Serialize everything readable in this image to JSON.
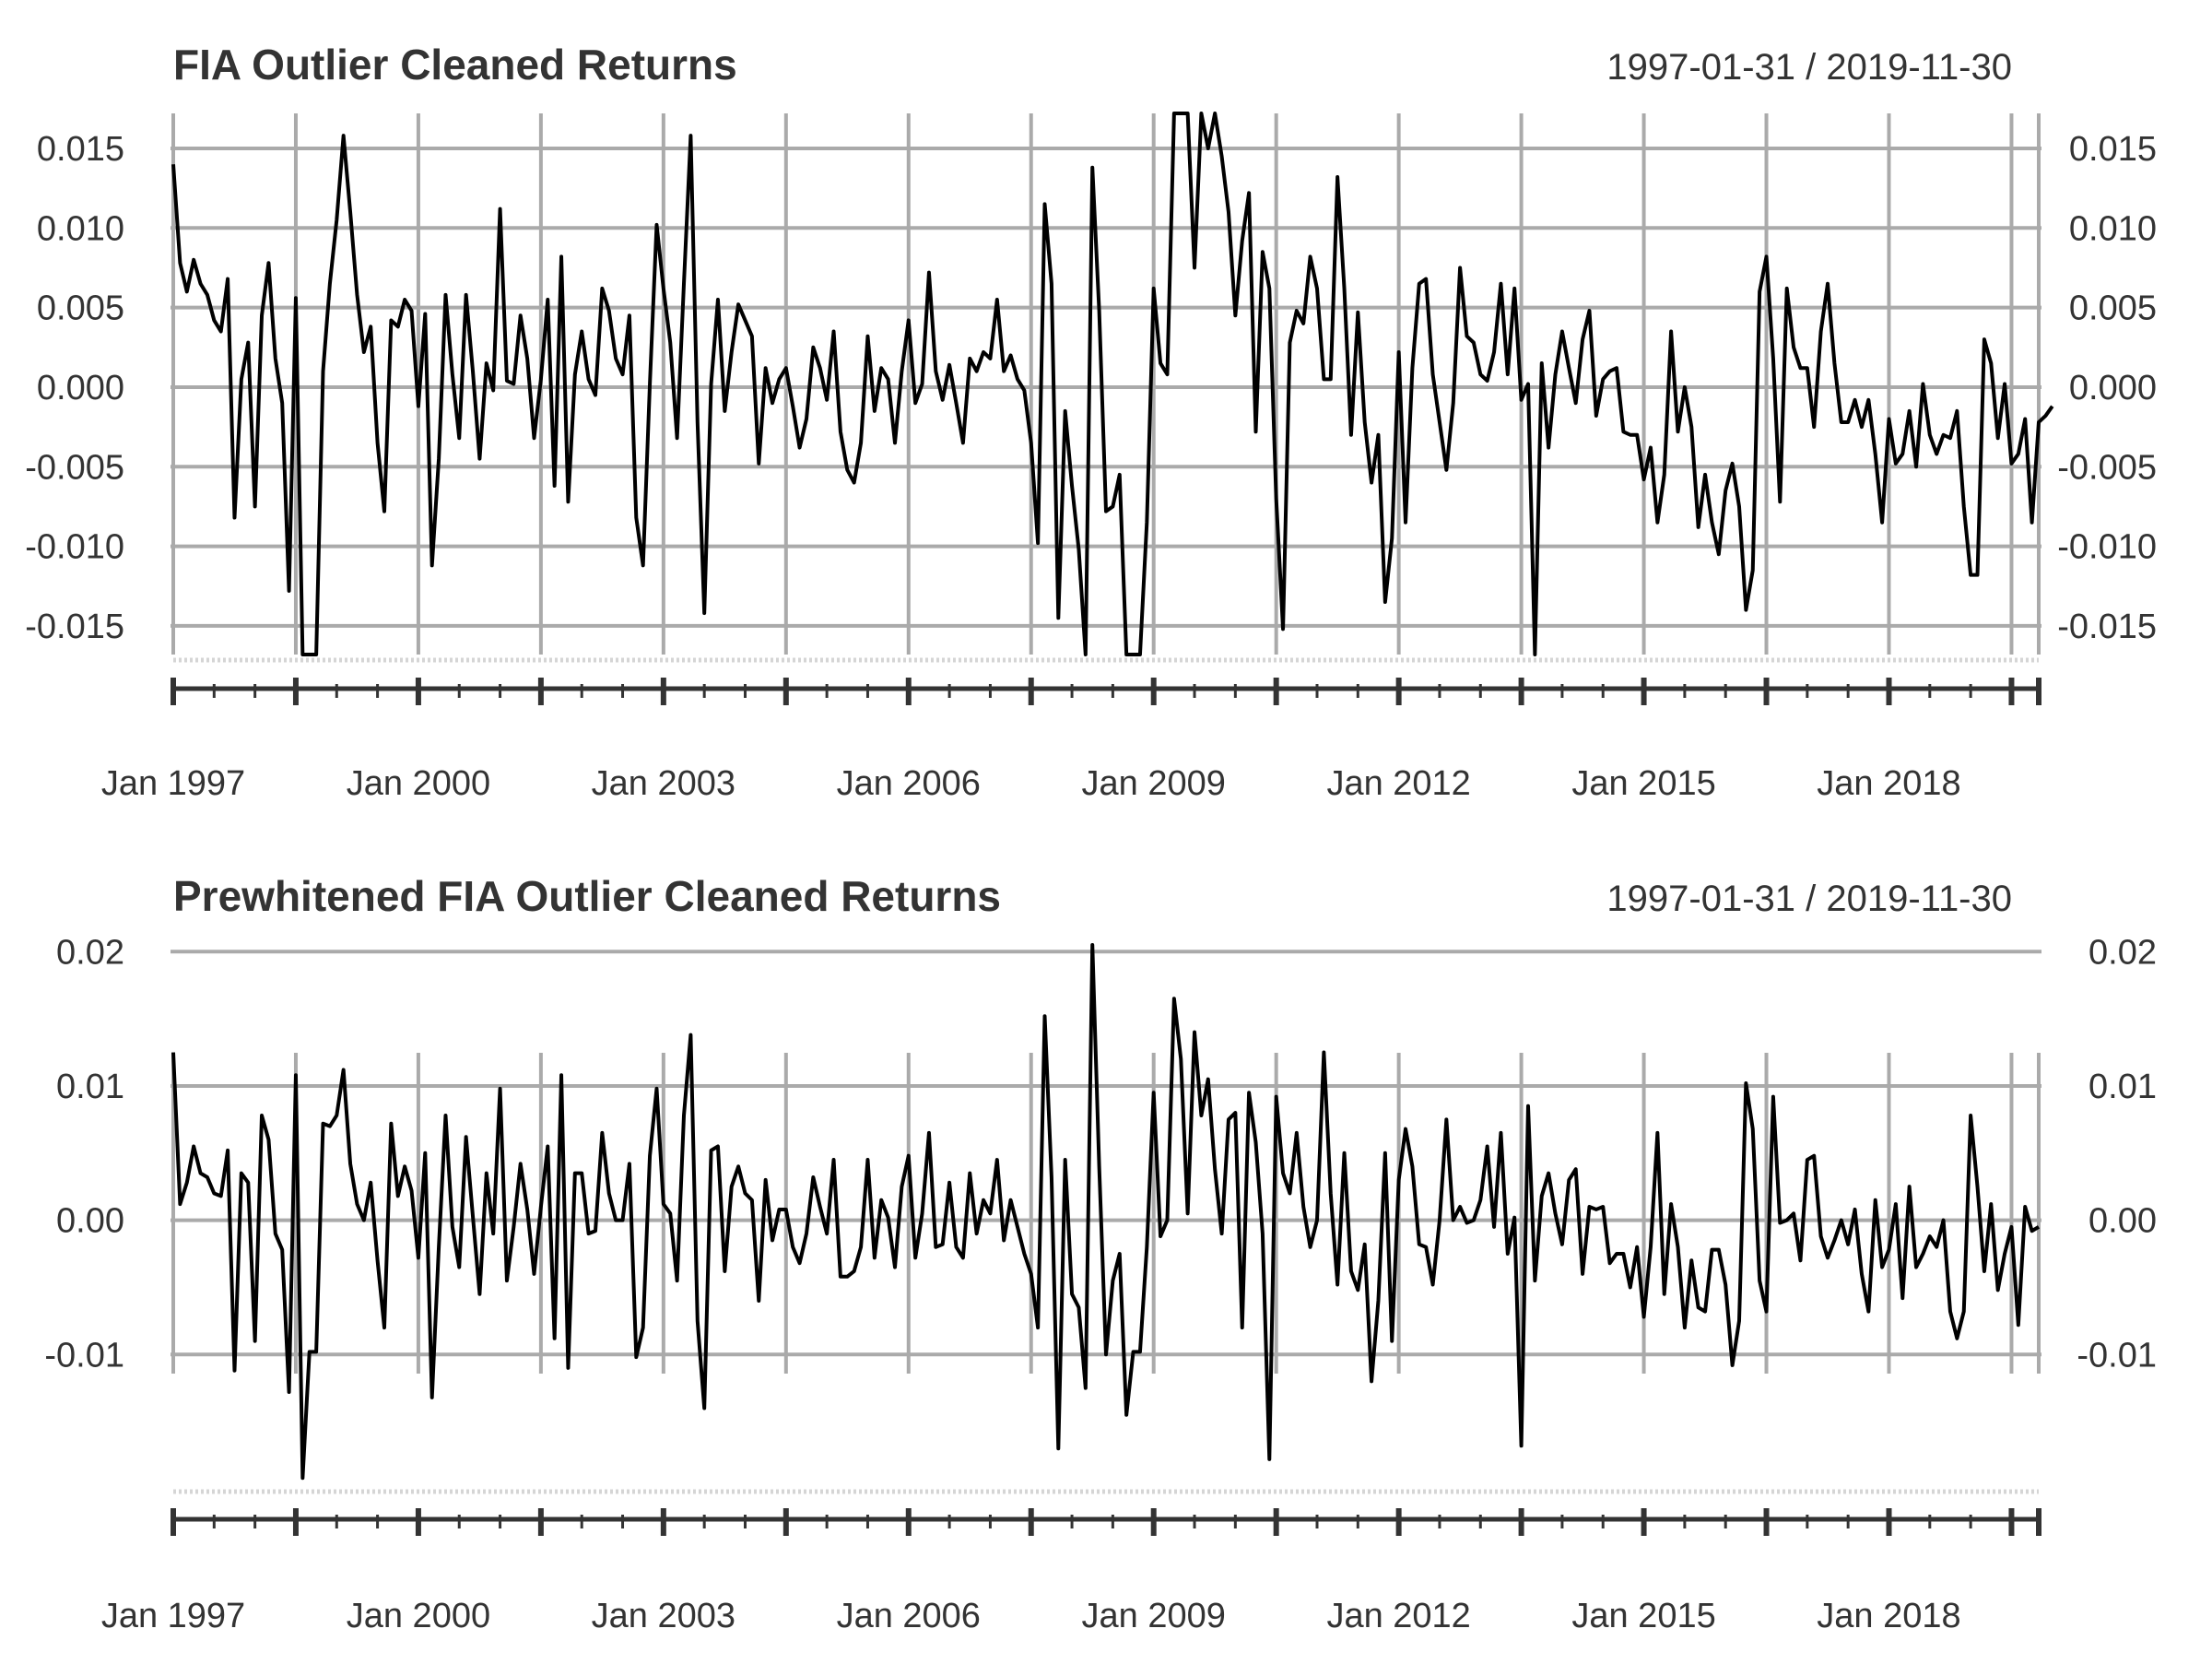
{
  "chart_data": [
    {
      "type": "line",
      "title": "FIA Outlier Cleaned Returns",
      "date_range": "1997-01-31 / 2019-11-30",
      "x_start": "1997-01",
      "x_end": "2019-11",
      "frequency": "monthly",
      "ylim": [
        -0.0168,
        0.0172
      ],
      "y_ticks": [
        0.015,
        0.01,
        0.005,
        0.0,
        -0.005,
        -0.01,
        -0.015
      ],
      "y_tick_labels": [
        "0.015",
        "0.010",
        "0.005",
        "0.000",
        "-0.005",
        "-0.010",
        "-0.015"
      ],
      "x_tick_labels": [
        "Jan 1997",
        "Jan 2000",
        "Jan 2003",
        "Jan 2006",
        "Jan 2009",
        "Jan 2012",
        "Jan 2015",
        "Jan 2018"
      ],
      "grid": true,
      "series": [
        {
          "values": [
            0.014,
            0.0078,
            0.006,
            0.008,
            0.0065,
            0.0058,
            0.0042,
            0.0035,
            0.0068,
            -0.0082,
            0.0005,
            0.0028,
            -0.0075,
            0.0045,
            0.0078,
            0.0018,
            -0.001,
            -0.0128,
            0.0056,
            -0.0168,
            -0.0168,
            -0.0168,
            0.001,
            0.0065,
            0.0105,
            0.0158,
            0.011,
            0.0058,
            0.0022,
            0.0038,
            -0.0035,
            -0.0078,
            0.0042,
            0.0038,
            0.0055,
            0.0048,
            -0.0012,
            0.0046,
            -0.0112,
            -0.0045,
            0.0058,
            0.0008,
            -0.0032,
            0.0058,
            0.001,
            -0.0045,
            0.0015,
            -0.0002,
            0.0112,
            0.0004,
            0.0002,
            0.0045,
            0.0018,
            -0.0032,
            0.0005,
            0.0055,
            -0.0062,
            0.0082,
            -0.0072,
            0.0008,
            0.0035,
            0.0005,
            -0.0005,
            0.0062,
            0.0048,
            0.0018,
            0.0008,
            0.0045,
            -0.0082,
            -0.0112,
            0.0002,
            0.0102,
            0.0062,
            0.0028,
            -0.0032,
            0.0065,
            0.0158,
            -0.0022,
            -0.0142,
            0.0002,
            0.0055,
            -0.0015,
            0.0022,
            0.0052,
            0.0042,
            0.0032,
            -0.0048,
            0.0012,
            -0.001,
            0.0005,
            0.0012,
            -0.0012,
            -0.0038,
            -0.002,
            0.0025,
            0.0012,
            -0.0008,
            0.0035,
            -0.0028,
            -0.0052,
            -0.006,
            -0.0035,
            0.0032,
            -0.0015,
            0.0012,
            0.0005,
            -0.0035,
            0.001,
            0.0042,
            -0.001,
            0.0002,
            0.0072,
            0.001,
            -0.0008,
            0.0014,
            -0.001,
            -0.0035,
            0.0018,
            0.001,
            0.0022,
            0.0018,
            0.0055,
            0.001,
            0.002,
            0.0005,
            -0.0002,
            -0.0035,
            -0.0098,
            0.0115,
            0.0065,
            -0.0145,
            -0.0015,
            -0.0062,
            -0.0102,
            -0.0168,
            0.0138,
            0.0048,
            -0.0078,
            -0.0075,
            -0.0055,
            -0.0168,
            -0.0168,
            -0.0168,
            -0.0085,
            0.0062,
            0.0015,
            0.0008,
            0.0172,
            0.0172,
            0.0172,
            0.0075,
            0.0172,
            0.015,
            0.0172,
            0.0145,
            0.011,
            0.0045,
            0.0092,
            0.0122,
            -0.0028,
            0.0085,
            0.0062,
            -0.007,
            -0.0152,
            0.0028,
            0.0048,
            0.004,
            0.0082,
            0.0062,
            0.0005,
            0.0005,
            0.0132,
            0.0062,
            -0.003,
            0.0047,
            -0.0022,
            -0.006,
            -0.003,
            -0.0135,
            -0.0095,
            0.0022,
            -0.0085,
            0.0012,
            0.0065,
            0.0068,
            0.0008,
            -0.0022,
            -0.0052,
            -0.001,
            0.0075,
            0.0032,
            0.0028,
            0.0008,
            0.0004,
            0.0022,
            0.0065,
            0.0008,
            0.0062,
            -0.0008,
            0.0002,
            -0.0168,
            0.0015,
            -0.0038,
            0.0008,
            0.0035,
            0.0012,
            -0.001,
            0.003,
            0.0048,
            -0.0018,
            0.0005,
            0.001,
            0.0012,
            -0.0028,
            -0.003,
            -0.003,
            -0.0058,
            -0.0038,
            -0.0085,
            -0.0055,
            0.0035,
            -0.0028,
            0.0,
            -0.0025,
            -0.0088,
            -0.0055,
            -0.0085,
            -0.0105,
            -0.0065,
            -0.0048,
            -0.0075,
            -0.014,
            -0.0115,
            0.006,
            0.0082,
            0.0018,
            -0.0072,
            0.0062,
            0.0025,
            0.0012,
            0.0012,
            -0.0025,
            0.0035,
            0.0065,
            0.0015,
            -0.0022,
            -0.0022,
            -0.0008,
            -0.0025,
            -0.0008,
            -0.0042,
            -0.0085,
            -0.002,
            -0.0048,
            -0.0042,
            -0.0015,
            -0.005,
            0.0002,
            -0.003,
            -0.0042,
            -0.003,
            -0.0032,
            -0.0015,
            -0.0075,
            -0.0118,
            -0.0118,
            0.003,
            0.0015,
            -0.0032,
            0.0002,
            -0.0048,
            -0.0042,
            -0.002,
            -0.0085,
            -0.0022,
            -0.0018,
            -0.0012
          ]
        }
      ]
    },
    {
      "type": "line",
      "title": "Prewhitened FIA Outlier Cleaned Returns",
      "date_range": "1997-01-31 / 2019-11-30",
      "x_start": "1997-01",
      "x_end": "2019-11",
      "frequency": "monthly",
      "ylim": [
        -0.0198,
        0.0205
      ],
      "y_ticks": [
        0.02,
        0.01,
        0.0,
        -0.01
      ],
      "y_tick_labels": [
        "0.02",
        "0.01",
        "0.00",
        "-0.01"
      ],
      "x_tick_labels": [
        "Jan 1997",
        "Jan 2000",
        "Jan 2003",
        "Jan 2006",
        "Jan 2009",
        "Jan 2012",
        "Jan 2015",
        "Jan 2018"
      ],
      "grid": true,
      "series": [
        {
          "values": [
            0.0125,
            0.0012,
            0.0028,
            0.0055,
            0.0035,
            0.0032,
            0.002,
            0.0018,
            0.0052,
            -0.0112,
            0.0035,
            0.0028,
            -0.009,
            0.0078,
            0.006,
            -0.001,
            -0.0022,
            -0.0128,
            0.0108,
            -0.0192,
            -0.0098,
            -0.0098,
            0.0072,
            0.007,
            0.0078,
            0.0112,
            0.0042,
            0.0012,
            0.0,
            0.0028,
            -0.003,
            -0.008,
            0.0072,
            0.0018,
            0.004,
            0.0022,
            -0.0028,
            0.005,
            -0.0132,
            -0.002,
            0.0078,
            -0.0005,
            -0.0035,
            0.0062,
            0.0003,
            -0.0055,
            0.0035,
            -0.001,
            0.0098,
            -0.0045,
            -0.0005,
            0.0042,
            0.0008,
            -0.004,
            0.001,
            0.0055,
            -0.0088,
            0.0108,
            -0.011,
            0.0035,
            0.0035,
            -0.001,
            -0.0008,
            0.0065,
            0.002,
            0.0,
            0.0,
            0.0042,
            -0.0102,
            -0.008,
            0.0048,
            0.0098,
            0.0012,
            0.0005,
            -0.0045,
            0.0078,
            0.0138,
            -0.0075,
            -0.014,
            0.0052,
            0.0055,
            -0.0038,
            0.0025,
            0.004,
            0.002,
            0.0015,
            -0.006,
            0.003,
            -0.0015,
            0.0008,
            0.0008,
            -0.002,
            -0.0032,
            -0.001,
            0.0032,
            0.001,
            -0.001,
            0.0045,
            -0.0042,
            -0.0042,
            -0.0038,
            -0.002,
            0.0045,
            -0.0028,
            0.0015,
            0.0002,
            -0.0035,
            0.0025,
            0.0048,
            -0.0028,
            0.0005,
            0.0065,
            -0.002,
            -0.0018,
            0.0028,
            -0.002,
            -0.0028,
            0.0035,
            -0.001,
            0.0015,
            0.0005,
            0.0045,
            -0.0015,
            0.0015,
            -0.0005,
            -0.0025,
            -0.004,
            -0.008,
            0.0152,
            0.0032,
            -0.017,
            0.0045,
            -0.0055,
            -0.0065,
            -0.0125,
            0.0205,
            0.004,
            -0.01,
            -0.0045,
            -0.0025,
            -0.0145,
            -0.0098,
            -0.0098,
            -0.002,
            0.0095,
            -0.0012,
            0.0,
            0.0165,
            0.012,
            0.0005,
            0.014,
            0.0078,
            0.0105,
            0.0038,
            -0.001,
            0.0075,
            0.008,
            -0.008,
            0.0095,
            0.0058,
            -0.001,
            -0.0178,
            0.0092,
            0.0035,
            0.002,
            0.0065,
            0.001,
            -0.002,
            0.0,
            0.0125,
            0.002,
            -0.0048,
            0.005,
            -0.0038,
            -0.0052,
            -0.0018,
            -0.012,
            -0.006,
            0.005,
            -0.009,
            0.003,
            0.0068,
            0.004,
            -0.0018,
            -0.002,
            -0.0048,
            0.0,
            0.0075,
            0.0,
            0.001,
            -0.0002,
            0.0,
            0.0015,
            0.0055,
            -0.0005,
            0.0065,
            -0.0025,
            0.0002,
            -0.0168,
            0.0085,
            -0.0045,
            0.0018,
            0.0035,
            0.0005,
            -0.0018,
            0.003,
            0.0038,
            -0.004,
            0.001,
            0.0008,
            0.001,
            -0.0032,
            -0.0025,
            -0.0025,
            -0.005,
            -0.002,
            -0.0072,
            -0.002,
            0.0065,
            -0.0055,
            0.0012,
            -0.002,
            -0.008,
            -0.003,
            -0.0065,
            -0.0068,
            -0.0022,
            -0.0022,
            -0.0048,
            -0.0108,
            -0.0075,
            0.0102,
            0.0068,
            -0.0045,
            -0.0068,
            0.0092,
            -0.0002,
            0.0,
            0.0005,
            -0.003,
            0.0045,
            0.0048,
            -0.0012,
            -0.0028,
            -0.0015,
            0.0,
            -0.0018,
            0.0008,
            -0.004,
            -0.0068,
            0.0015,
            -0.0035,
            -0.0022,
            0.0012,
            -0.0058,
            0.0025,
            -0.0035,
            -0.0025,
            -0.0012,
            -0.002,
            0.0,
            -0.0068,
            -0.0088,
            -0.0068,
            0.0078,
            0.0025,
            -0.0038,
            0.0012,
            -0.0052,
            -0.0025,
            -0.0005,
            -0.0078,
            0.001,
            -0.0008,
            -0.0005
          ]
        }
      ]
    }
  ]
}
